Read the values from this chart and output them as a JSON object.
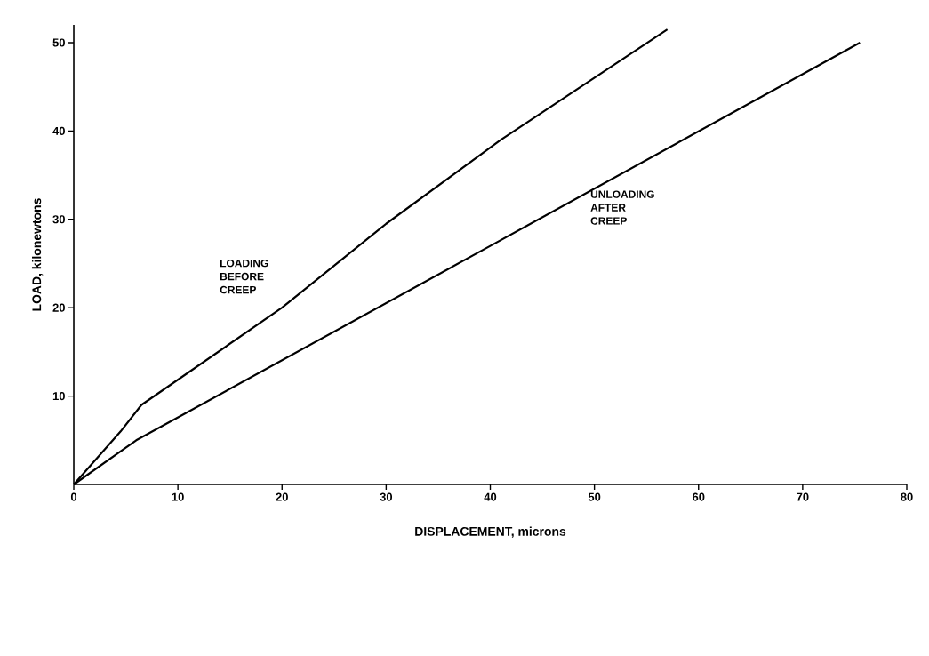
{
  "chart_data": {
    "type": "line",
    "xlabel": "DISPLACEMENT,  microns",
    "ylabel": "LOAD,  kilonewtons",
    "series": [
      {
        "color": "#000000",
        "x": [
          0,
          4.5,
          6.5,
          20,
          30,
          41,
          57
        ],
        "values": [
          0,
          6,
          9,
          20,
          29.5,
          39,
          51.5
        ]
      },
      {
        "color": "#000000",
        "x": [
          0,
          6,
          40,
          75.5
        ],
        "values": [
          0,
          5,
          27,
          50
        ]
      }
    ],
    "xlim": [
      0,
      80
    ],
    "ylim": [
      0,
      52
    ],
    "xticks": [
      0,
      10,
      20,
      30,
      40,
      50,
      60,
      70,
      80
    ],
    "yticks": [
      10,
      20,
      30,
      40,
      50
    ],
    "grid": false,
    "marker": "none",
    "line_style": "solid",
    "annotations": [
      "LOADING BEFORE CREEP",
      "UNLOADING AFTER CREEP"
    ]
  }
}
